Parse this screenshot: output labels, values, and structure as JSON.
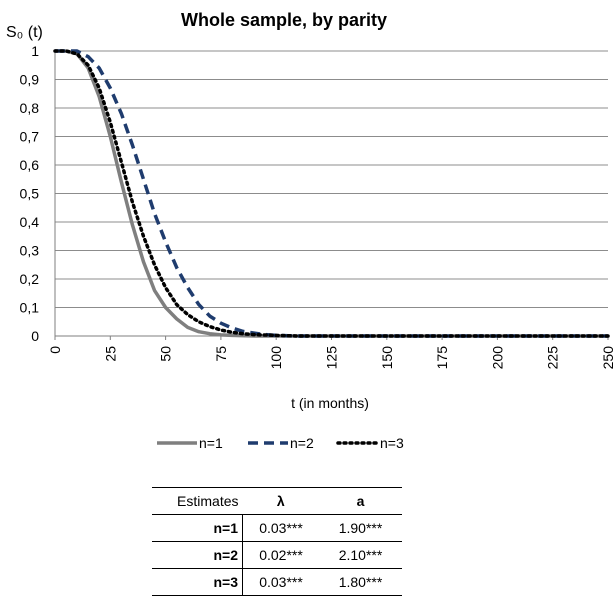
{
  "chart_data": {
    "type": "line",
    "title": "Whole sample, by parity",
    "ylabel": "S₀ (t)",
    "xlabel": "t (in months)",
    "xlim": [
      0,
      250
    ],
    "ylim": [
      0,
      1
    ],
    "x_ticks": [
      "0",
      "25",
      "50",
      "75",
      "100",
      "125",
      "150",
      "175",
      "200",
      "225",
      "250"
    ],
    "y_ticks": [
      "0",
      "0,1",
      "0,2",
      "0,3",
      "0,4",
      "0,5",
      "0,6",
      "0,7",
      "0,8",
      "0,9",
      "1"
    ],
    "grid": true,
    "legend_position": "bottom",
    "series": [
      {
        "name": "n=1",
        "style": "solid",
        "color": "#7f7f7f",
        "x": [
          0,
          5,
          10,
          15,
          20,
          25,
          30,
          35,
          40,
          45,
          50,
          55,
          60,
          65,
          70,
          75,
          80,
          90,
          100,
          125,
          150,
          200,
          250
        ],
        "y": [
          1,
          1,
          0.99,
          0.94,
          0.84,
          0.7,
          0.54,
          0.39,
          0.26,
          0.16,
          0.1,
          0.06,
          0.03,
          0.015,
          0.008,
          0.004,
          0.002,
          0,
          0,
          0,
          0,
          0,
          0
        ]
      },
      {
        "name": "n=2",
        "style": "dashed",
        "color": "#1f3c6e",
        "x": [
          0,
          5,
          10,
          15,
          20,
          25,
          30,
          35,
          40,
          45,
          50,
          55,
          60,
          65,
          70,
          75,
          80,
          85,
          90,
          95,
          100,
          110,
          125,
          150,
          200,
          250
        ],
        "y": [
          1,
          1,
          1,
          0.98,
          0.94,
          0.87,
          0.78,
          0.67,
          0.55,
          0.43,
          0.33,
          0.24,
          0.17,
          0.11,
          0.07,
          0.045,
          0.028,
          0.016,
          0.01,
          0.005,
          0.002,
          0,
          0,
          0,
          0,
          0
        ]
      },
      {
        "name": "n=3",
        "style": "dotted",
        "color": "#000000",
        "x": [
          0,
          5,
          10,
          15,
          20,
          25,
          30,
          35,
          40,
          45,
          50,
          55,
          60,
          65,
          70,
          75,
          80,
          85,
          90,
          100,
          110,
          125,
          150,
          200,
          250
        ],
        "y": [
          1,
          1,
          0.99,
          0.95,
          0.87,
          0.75,
          0.61,
          0.47,
          0.35,
          0.25,
          0.17,
          0.11,
          0.075,
          0.05,
          0.033,
          0.021,
          0.013,
          0.008,
          0.005,
          0.002,
          0,
          0,
          0,
          0,
          0
        ]
      }
    ]
  },
  "estimates_table": {
    "header": [
      "Estimates",
      "λ",
      "a"
    ],
    "rows": [
      [
        "n=1",
        "0.03***",
        "1.90***"
      ],
      [
        "n=2",
        "0.02***",
        "2.10***"
      ],
      [
        "n=3",
        "0.03***",
        "1.80***"
      ]
    ]
  }
}
